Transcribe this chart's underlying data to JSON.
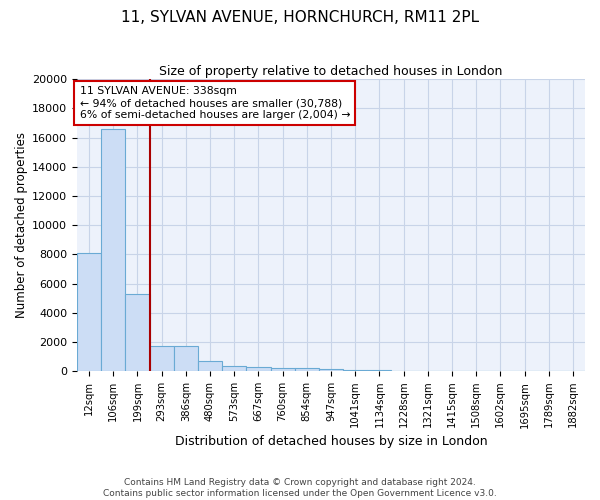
{
  "title": "11, SYLVAN AVENUE, HORNCHURCH, RM11 2PL",
  "subtitle": "Size of property relative to detached houses in London",
  "xlabel": "Distribution of detached houses by size in London",
  "ylabel": "Number of detached properties",
  "bar_color": "#ccddf5",
  "bar_edge_color": "#6aaad4",
  "categories": [
    "12sqm",
    "106sqm",
    "199sqm",
    "293sqm",
    "386sqm",
    "480sqm",
    "573sqm",
    "667sqm",
    "760sqm",
    "854sqm",
    "947sqm",
    "1041sqm",
    "1134sqm",
    "1228sqm",
    "1321sqm",
    "1415sqm",
    "1508sqm",
    "1602sqm",
    "1695sqm",
    "1789sqm",
    "1882sqm"
  ],
  "values": [
    8100,
    16600,
    5300,
    1750,
    1750,
    680,
    360,
    280,
    230,
    200,
    135,
    80,
    55,
    38,
    28,
    20,
    15,
    12,
    10,
    8,
    6
  ],
  "ylim": [
    0,
    20000
  ],
  "yticks": [
    0,
    2000,
    4000,
    6000,
    8000,
    10000,
    12000,
    14000,
    16000,
    18000,
    20000
  ],
  "property_label": "11 SYLVAN AVENUE: 338sqm",
  "annotation_line1": "← 94% of detached houses are smaller (30,788)",
  "annotation_line2": "6% of semi-detached houses are larger (2,004) →",
  "red_line_color": "#aa0000",
  "annotation_box_facecolor": "#ffffff",
  "annotation_box_edgecolor": "#cc0000",
  "footer_line1": "Contains HM Land Registry data © Crown copyright and database right 2024.",
  "footer_line2": "Contains public sector information licensed under the Open Government Licence v3.0.",
  "bg_color": "#edf2fb",
  "grid_color": "#c8d4e8"
}
